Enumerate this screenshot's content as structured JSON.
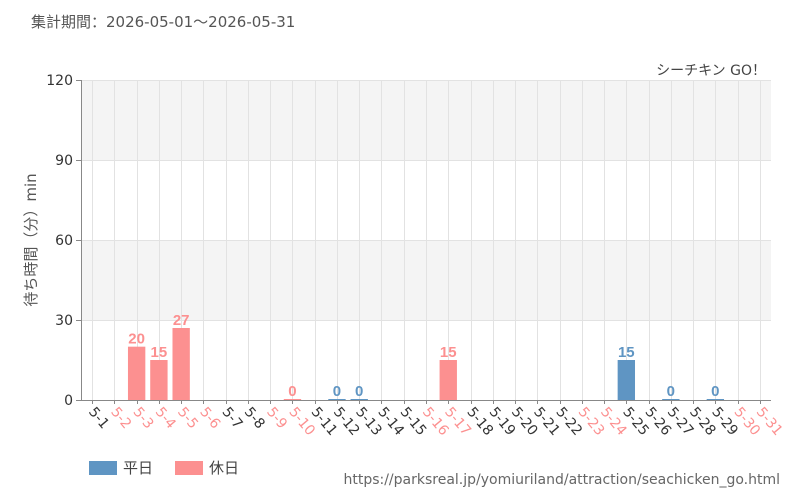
{
  "header": {
    "period": "集計期間：2026-05-01～2026-05-31"
  },
  "footer": {
    "source": "https://parksreal.jp/yomiuriland/attraction/seachicken_go.html"
  },
  "legend": {
    "weekday_label": "平日",
    "holiday_label": "休日"
  },
  "colors": {
    "weekday": "#5f95c3",
    "holiday": "#fc9090",
    "band": "#f4f4f4",
    "grid": "#e2e2e2"
  },
  "chart_data": {
    "type": "bar",
    "title": "シーチキン GO！",
    "xlabel": "",
    "ylabel": "待ち時間（分）min",
    "ylim": [
      0,
      120
    ],
    "yticks": [
      0,
      30,
      60,
      90,
      120
    ],
    "grid": true,
    "legend_position": "bottom-left",
    "categories": [
      "5-1",
      "5-2",
      "5-3",
      "5-4",
      "5-5",
      "5-6",
      "5-7",
      "5-8",
      "5-9",
      "5-10",
      "5-11",
      "5-12",
      "5-13",
      "5-14",
      "5-15",
      "5-16",
      "5-17",
      "5-18",
      "5-19",
      "5-20",
      "5-21",
      "5-22",
      "5-23",
      "5-24",
      "5-25",
      "5-26",
      "5-27",
      "5-28",
      "5-29",
      "5-30",
      "5-31"
    ],
    "day_type": [
      "weekday",
      "holiday",
      "holiday",
      "holiday",
      "holiday",
      "holiday",
      "weekday",
      "weekday",
      "holiday",
      "holiday",
      "weekday",
      "weekday",
      "weekday",
      "weekday",
      "weekday",
      "holiday",
      "holiday",
      "weekday",
      "weekday",
      "weekday",
      "weekday",
      "weekday",
      "holiday",
      "holiday",
      "weekday",
      "weekday",
      "weekday",
      "weekday",
      "weekday",
      "holiday",
      "holiday"
    ],
    "values": [
      null,
      null,
      20,
      15,
      27,
      null,
      null,
      null,
      null,
      0,
      null,
      0,
      0,
      null,
      null,
      null,
      15,
      null,
      null,
      null,
      null,
      null,
      null,
      null,
      15,
      null,
      0,
      null,
      0,
      null,
      null
    ]
  }
}
